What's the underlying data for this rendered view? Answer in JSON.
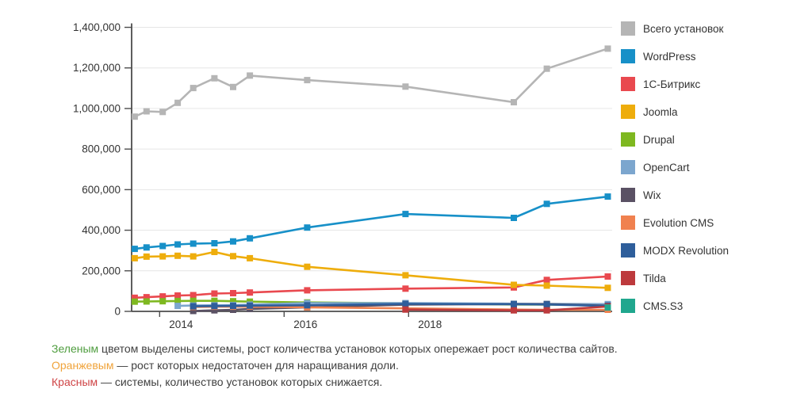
{
  "chart_data": {
    "type": "line",
    "title": "",
    "xlabel": "",
    "ylabel": "",
    "xlim": [
      2013.55,
      2021.27
    ],
    "ylim": [
      0,
      1400000
    ],
    "y_tick_step": 200000,
    "x_ticks": [
      2014,
      2016,
      2018
    ],
    "grid": "horizontal",
    "legend_position": "right",
    "marker": "square",
    "x": [
      2013.6,
      2013.79,
      2014.05,
      2014.29,
      2014.54,
      2014.88,
      2015.18,
      2015.45,
      2016.37,
      2017.95,
      2019.69,
      2020.22,
      2021.2
    ],
    "series": [
      {
        "id": "total",
        "name": "Всего установок",
        "color": "#b5b5b5",
        "values": [
          960000,
          986000,
          983000,
          1028000,
          1101000,
          1149000,
          1106000,
          1162000,
          1140000,
          1108000,
          1031000,
          1196000,
          1295000
        ]
      },
      {
        "id": "wordpress",
        "name": "WordPress",
        "color": "#1790c8",
        "values": [
          308000,
          315000,
          322000,
          330000,
          334000,
          336000,
          345000,
          360000,
          413000,
          480000,
          461000,
          530000,
          566000
        ]
      },
      {
        "id": "bitrix",
        "name": "1С-Битрикс",
        "color": "#e9494f",
        "values": [
          67000,
          70000,
          74000,
          78000,
          80000,
          88000,
          90000,
          93000,
          104000,
          112000,
          118000,
          155000,
          172000
        ]
      },
      {
        "id": "joomla",
        "name": "Joomla",
        "color": "#eead0c",
        "values": [
          262000,
          270000,
          271000,
          274000,
          271000,
          293000,
          272000,
          262000,
          220000,
          178000,
          131000,
          127000,
          116000
        ]
      },
      {
        "id": "drupal",
        "name": "Drupal",
        "color": "#7eb820",
        "values": [
          48000,
          49000,
          50000,
          51000,
          52000,
          52000,
          50000,
          48000,
          44000,
          40000,
          34000,
          33000,
          32000
        ]
      },
      {
        "id": "opencart",
        "name": "OpenCart",
        "color": "#7ca6ce",
        "values": [
          null,
          null,
          null,
          27000,
          29000,
          30000,
          31000,
          33000,
          41000,
          41000,
          38000,
          37000,
          36000
        ]
      },
      {
        "id": "wix",
        "name": "Wix",
        "color": "#5a5164",
        "values": [
          null,
          null,
          null,
          null,
          2000,
          5000,
          8000,
          12000,
          20000,
          33000,
          36000,
          36000,
          28000
        ]
      },
      {
        "id": "evolution-cms",
        "name": "Evolution CMS",
        "color": "#f0814f",
        "values": [
          null,
          null,
          null,
          null,
          22000,
          23000,
          23000,
          24000,
          20000,
          15000,
          9000,
          8000,
          8000
        ]
      },
      {
        "id": "modx-revolution",
        "name": "MODX Revolution",
        "color": "#2e5e9b",
        "values": [
          null,
          null,
          null,
          null,
          25000,
          26000,
          27000,
          28000,
          30000,
          37000,
          35000,
          34000,
          27000
        ]
      },
      {
        "id": "tilda",
        "name": "Tilda",
        "color": "#bd3a3d",
        "values": [
          null,
          null,
          null,
          null,
          null,
          null,
          null,
          null,
          null,
          9000,
          5000,
          5000,
          24000
        ]
      },
      {
        "id": "cms-s3",
        "name": "CMS.S3",
        "color": "#20a78e",
        "values": [
          null,
          null,
          null,
          null,
          null,
          null,
          null,
          null,
          null,
          null,
          null,
          null,
          19000
        ]
      }
    ]
  },
  "axes": {
    "label_color": "#333333",
    "axis_color": "#4d4d4d",
    "grid_color": "#e6e6e6"
  },
  "footer": {
    "lines": [
      {
        "word": "Зеленым",
        "color": "#4f9d3f",
        "rest": " цветом выделены системы, рост количества установок которых опережает рост количества сайтов."
      },
      {
        "word": "Оранжевым",
        "color": "#f0a33a",
        "rest": " — рост которых недостаточен для наращивания доли."
      },
      {
        "word": "Красным",
        "color": "#cf4446",
        "rest": " — системы, количество установок которых снижается."
      }
    ]
  }
}
